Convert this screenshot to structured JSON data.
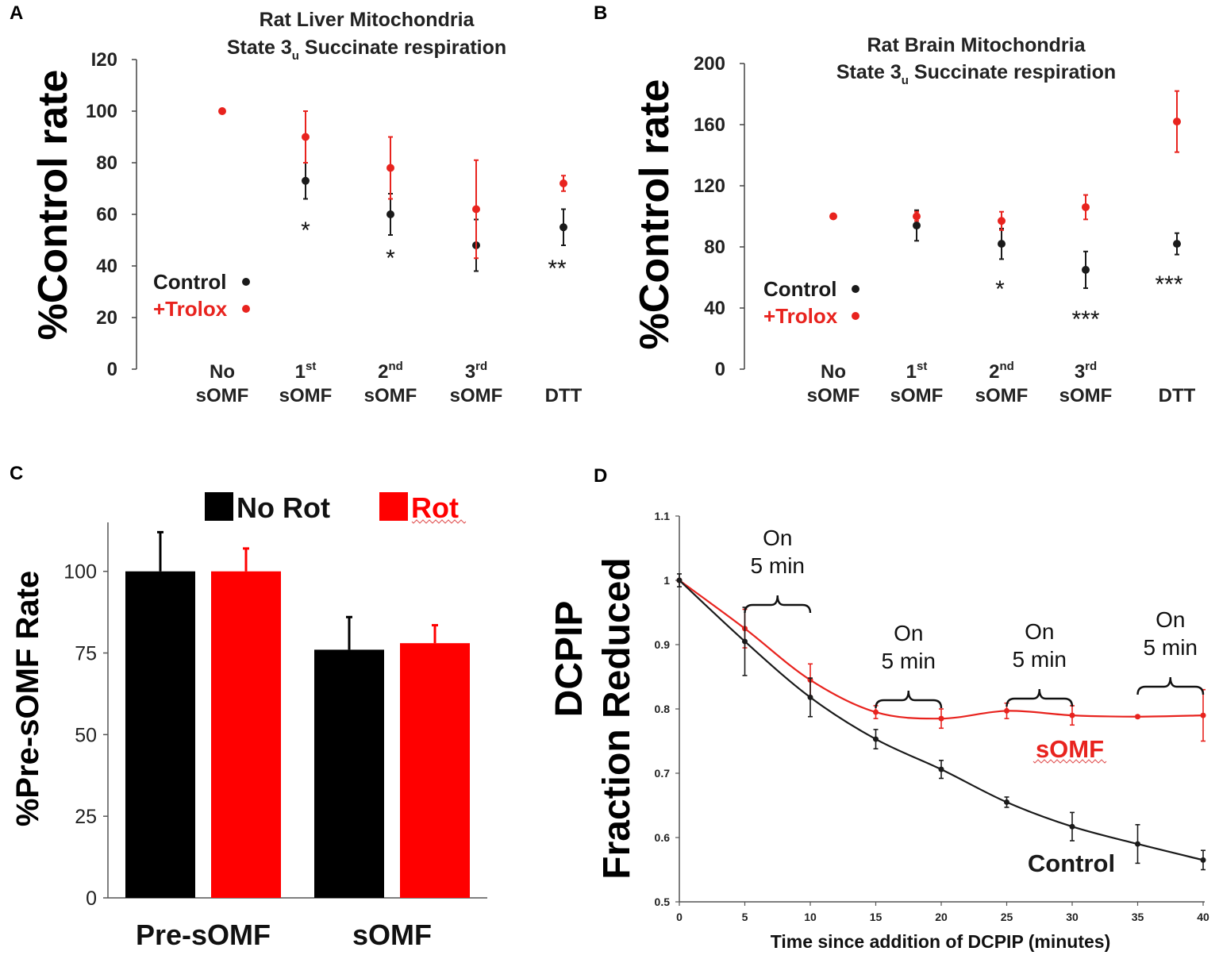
{
  "chart_data": [
    {
      "id": "A",
      "panel_label": "A",
      "type": "scatter",
      "title_line1": "Rat Liver Mitochondria",
      "title_line2_main": "State 3",
      "title_line2_sub": "u",
      "title_line2_rest": " Succinate respiration",
      "ylabel": "%Control rate",
      "ylim": [
        0,
        120
      ],
      "yticks": [
        0,
        20,
        40,
        60,
        80,
        100,
        120
      ],
      "ytick_labels": [
        "0",
        "20",
        "40",
        "60",
        "80",
        "100",
        "I20"
      ],
      "categories": [
        {
          "l1": "No",
          "l1_sup": "",
          "l2": "sOMF"
        },
        {
          "l1": "1",
          "l1_sup": "st",
          "l2": "sOMF"
        },
        {
          "l1": "2",
          "l1_sup": "nd",
          "l2": "sOMF"
        },
        {
          "l1": "3",
          "l1_sup": "rd",
          "l2": "sOMF"
        },
        {
          "l1": "",
          "l1_sup": "",
          "l2": "DTT"
        }
      ],
      "series": [
        {
          "name": "Control",
          "color": "#1a1a1a",
          "values": [
            null,
            73,
            60,
            48,
            55
          ],
          "errors": [
            null,
            7,
            8,
            10,
            7
          ]
        },
        {
          "name": "+Trolox",
          "color": "#e8231e",
          "values": [
            100,
            90,
            78,
            62,
            72
          ],
          "errors": [
            null,
            10,
            12,
            19,
            3
          ]
        }
      ],
      "significance": [
        "",
        "*",
        "*",
        "",
        "**"
      ],
      "legend": [
        {
          "label": "Control",
          "color": "#1a1a1a"
        },
        {
          "label": "+Trolox",
          "color": "#e8231e"
        }
      ]
    },
    {
      "id": "B",
      "panel_label": "B",
      "type": "scatter",
      "title_line1": "Rat Brain Mitochondria",
      "title_line2_main": "State 3",
      "title_line2_sub": "u",
      "title_line2_rest": " Succinate respiration",
      "ylabel": "%Control rate",
      "ylim": [
        0,
        200
      ],
      "yticks": [
        0,
        40,
        80,
        120,
        160,
        200
      ],
      "ytick_labels": [
        "0",
        "40",
        "80",
        "120",
        "160",
        "200"
      ],
      "categories": [
        {
          "l1": "No",
          "l1_sup": "",
          "l2": "sOMF"
        },
        {
          "l1": "1",
          "l1_sup": "st",
          "l2": "sOMF"
        },
        {
          "l1": "2",
          "l1_sup": "nd",
          "l2": "sOMF"
        },
        {
          "l1": "3",
          "l1_sup": "rd",
          "l2": "sOMF"
        },
        {
          "l1": "",
          "l1_sup": "",
          "l2": "DTT"
        }
      ],
      "series": [
        {
          "name": "Control",
          "color": "#1a1a1a",
          "values": [
            null,
            94,
            82,
            65,
            82
          ],
          "errors": [
            null,
            10,
            10,
            12,
            7
          ]
        },
        {
          "name": "+Trolox",
          "color": "#e8231e",
          "values": [
            100,
            100,
            97,
            106,
            162
          ],
          "errors": [
            null,
            3,
            6,
            8,
            20
          ]
        }
      ],
      "significance": [
        "",
        "",
        "*",
        "***",
        "***"
      ],
      "legend": [
        {
          "label": "Control",
          "color": "#1a1a1a"
        },
        {
          "label": "+Trolox",
          "color": "#e8231e"
        }
      ]
    },
    {
      "id": "C",
      "panel_label": "C",
      "type": "bar",
      "ylabel": "%Pre-sOMF Rate",
      "ylim": [
        0,
        115
      ],
      "yticks": [
        0,
        25,
        50,
        75,
        100
      ],
      "ytick_labels": [
        "0",
        "25",
        "50",
        "75",
        "100"
      ],
      "categories": [
        "Pre-sOMF",
        "sOMF"
      ],
      "series": [
        {
          "name": "No Rot",
          "color": "#000000",
          "values": [
            100,
            76
          ],
          "errors": [
            12,
            10
          ]
        },
        {
          "name": "Rot",
          "color": "#ff0000",
          "values": [
            100,
            78
          ],
          "errors": [
            7,
            5.5
          ]
        }
      ]
    },
    {
      "id": "D",
      "panel_label": "D",
      "type": "line",
      "ylabel_line1": "DCPIP",
      "ylabel_line2": "Fraction Reduced",
      "xlabel": "Time since addition of DCPIP (minutes)",
      "xlim": [
        0,
        40
      ],
      "ylim": [
        0.5,
        1.1
      ],
      "xticks": [
        0,
        5,
        10,
        15,
        20,
        25,
        30,
        35,
        40
      ],
      "xtick_labels": [
        "0",
        "5",
        "10",
        "15",
        "20",
        "25",
        "30",
        "35",
        "40"
      ],
      "yticks": [
        0.5,
        0.6,
        0.7,
        0.8,
        0.9,
        1.0,
        1.1
      ],
      "ytick_labels": [
        "0.5",
        "0.6",
        "0.7",
        "0.8",
        "0.9",
        "1",
        "1.1"
      ],
      "x": [
        0,
        5,
        10,
        15,
        20,
        25,
        30,
        35,
        40
      ],
      "series": [
        {
          "name": "sOMF",
          "color": "#e8231e",
          "values": [
            1.0,
            0.925,
            0.845,
            0.795,
            0.785,
            0.797,
            0.79,
            0.788,
            0.79
          ],
          "errors": [
            0,
            0.03,
            0.025,
            0.01,
            0.015,
            0.012,
            0.015,
            0.002,
            0.04
          ]
        },
        {
          "name": "Control",
          "color": "#1a1a1a",
          "values": [
            1.0,
            0.905,
            0.818,
            0.753,
            0.706,
            0.655,
            0.617,
            0.59,
            0.565
          ],
          "errors": [
            0.01,
            0.053,
            0.03,
            0.015,
            0.014,
            0.008,
            0.022,
            0.03,
            0.015
          ]
        }
      ],
      "series_labels": [
        {
          "text": "sOMF",
          "color": "#e8231e"
        },
        {
          "text": "Control",
          "color": "#1a1a1a"
        }
      ],
      "annotations": [
        {
          "line1": "On",
          "line2": "5 min",
          "x_start": 5,
          "x_end": 10
        },
        {
          "line1": "On",
          "line2": "5 min",
          "x_start": 15,
          "x_end": 20
        },
        {
          "line1": "On",
          "line2": "5 min",
          "x_start": 25,
          "x_end": 30
        },
        {
          "line1": "On",
          "line2": "5 min",
          "x_start": 35,
          "x_end": 40
        }
      ]
    }
  ]
}
